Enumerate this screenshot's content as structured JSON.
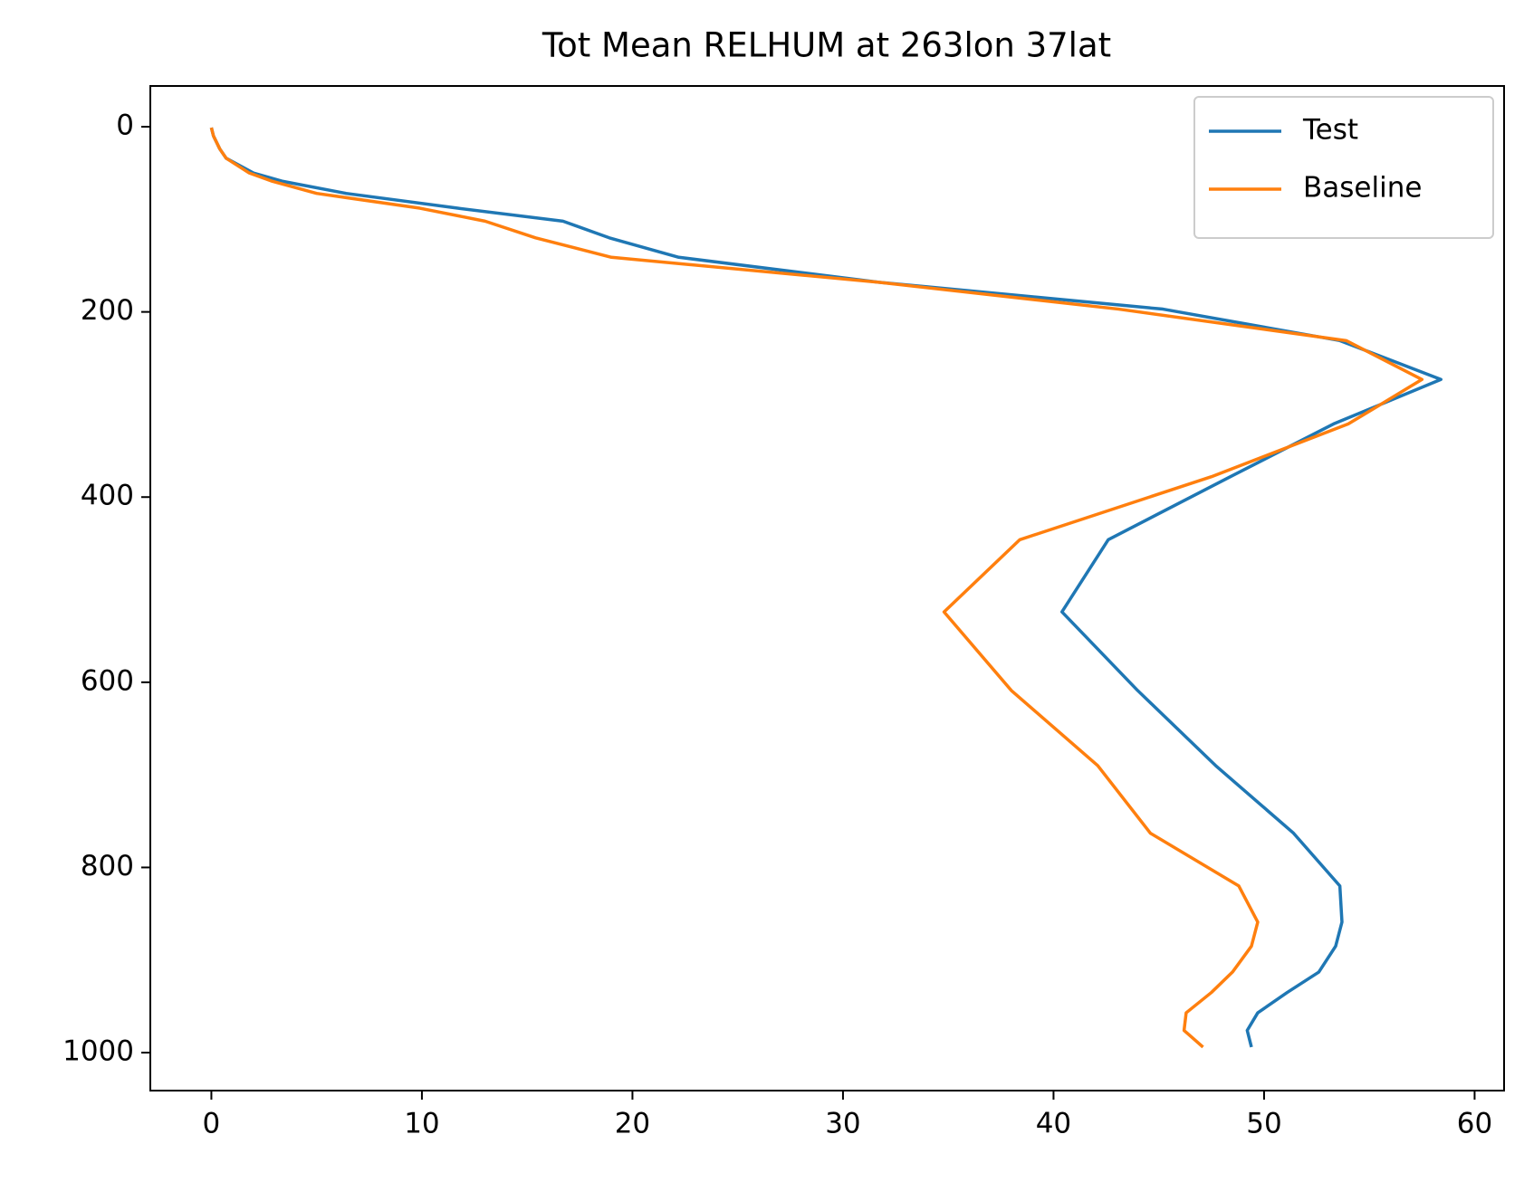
{
  "chart_data": {
    "type": "line",
    "title": "Tot Mean RELHUM at 263lon 37lat",
    "y": [
      1,
      10,
      24,
      34,
      50,
      59,
      72,
      88,
      102,
      120,
      141,
      168,
      197,
      231,
      273,
      321,
      378,
      446,
      524,
      609,
      690,
      763,
      820,
      859,
      885,
      913,
      935,
      957,
      976,
      994
    ],
    "series": [
      {
        "name": "Test",
        "color": "#1f77b4",
        "values": [
          0,
          0.1,
          0.4,
          0.7,
          2.0,
          3.4,
          6.4,
          11.7,
          16.7,
          18.9,
          22.2,
          31.7,
          45.2,
          53.6,
          58.4,
          53.3,
          48.4,
          42.6,
          40.4,
          44.0,
          47.7,
          51.4,
          53.6,
          53.7,
          53.4,
          52.6,
          51.1,
          49.7,
          49.2,
          49.4
        ]
      },
      {
        "name": "Baseline",
        "color": "#ff7f0e",
        "values": [
          0,
          0.1,
          0.4,
          0.7,
          1.8,
          2.9,
          5.0,
          9.9,
          13.0,
          15.4,
          19.0,
          31.7,
          43.1,
          53.9,
          57.5,
          54.0,
          47.5,
          38.4,
          34.8,
          38.0,
          42.1,
          44.6,
          48.8,
          49.7,
          49.4,
          48.5,
          47.5,
          46.3,
          46.2,
          47.1
        ]
      }
    ],
    "xlim": [
      -2.9,
      61.4
    ],
    "xticks": [
      0,
      10,
      20,
      30,
      40,
      50,
      60
    ],
    "ylim": [
      1041,
      -44
    ],
    "yticks": [
      0,
      200,
      400,
      600,
      800,
      1000
    ],
    "legend": "upper right"
  }
}
